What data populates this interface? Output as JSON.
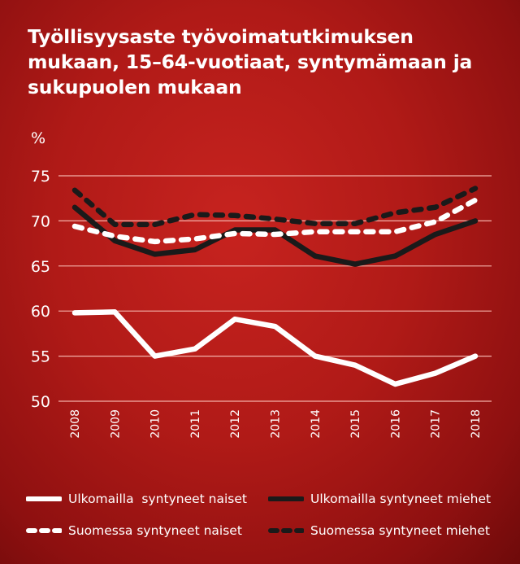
{
  "chart_data": {
    "type": "line",
    "title": "Työllisyysaste työvoimatutkimuksen mukaan, 15–64-vuotiaat, syntymämaan ja sukupuolen mukaan",
    "ylabel": "%",
    "xlabel": "",
    "x": [
      "2008",
      "2009",
      "2010",
      "2011",
      "2012",
      "2013",
      "2014",
      "2015",
      "2016",
      "2017",
      "2018"
    ],
    "ylim": [
      50,
      75
    ],
    "yticks": [
      50,
      55,
      60,
      65,
      70,
      75
    ],
    "grid": true,
    "legend_position": "bottom",
    "series": [
      {
        "name": "Ulkomailla  syntyneet naiset",
        "color": "#ffffff",
        "dash": false,
        "values": [
          59.8,
          59.9,
          55.0,
          55.8,
          59.1,
          58.3,
          55.0,
          54.0,
          51.9,
          53.1,
          55.0
        ]
      },
      {
        "name": "Ulkomailla syntyneet miehet",
        "color": "#1a1a1a",
        "dash": false,
        "values": [
          71.5,
          67.8,
          66.3,
          66.8,
          69.0,
          69.0,
          66.1,
          65.2,
          66.1,
          68.5,
          70.0
        ]
      },
      {
        "name": "Suomessa syntyneet naiset",
        "color": "#ffffff",
        "dash": true,
        "values": [
          69.4,
          68.3,
          67.7,
          68.0,
          68.6,
          68.5,
          68.8,
          68.8,
          68.8,
          69.9,
          72.3
        ]
      },
      {
        "name": "Suomessa syntyneet miehet",
        "color": "#1a1a1a",
        "dash": true,
        "values": [
          73.4,
          69.6,
          69.6,
          70.7,
          70.6,
          70.2,
          69.7,
          69.7,
          70.9,
          71.5,
          73.6
        ]
      }
    ]
  }
}
